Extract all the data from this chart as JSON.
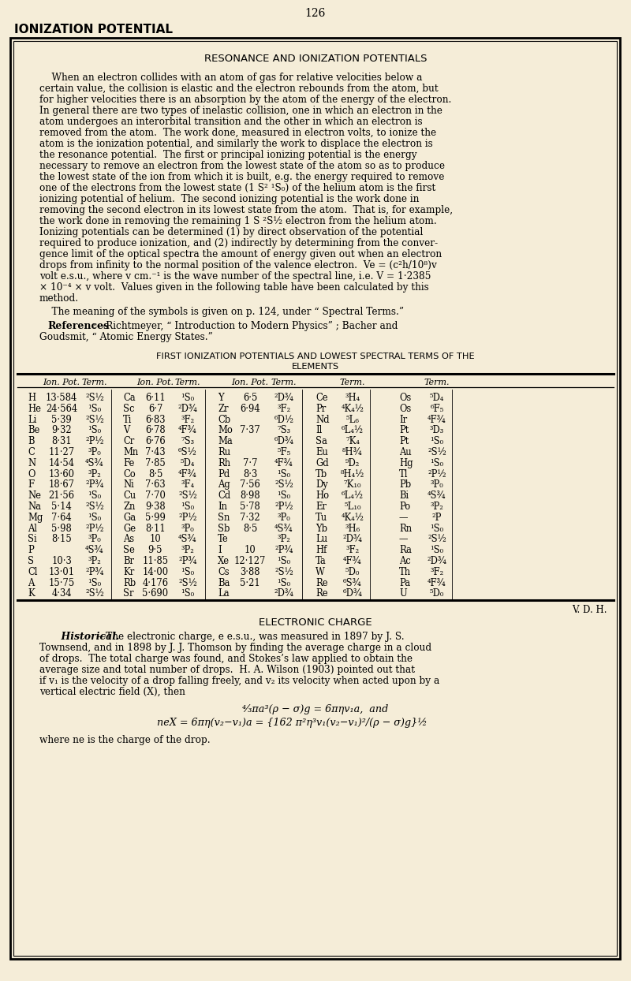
{
  "bg_color": "#f5edd8",
  "page_num": "126",
  "header": "IONIZATION POTENTIAL",
  "box_title": "RESONANCE AND IONIZATION POTENTIALS",
  "table_title_line1": "FIRST IONIZATION POTENTIALS AND LOWEST SPECTRAL TERMS OF THE",
  "table_title_line2": "ELEMENTS",
  "table_data": [
    [
      "H",
      "13·584",
      "²S½",
      "Ca",
      "6·11",
      "¹S₀",
      "Y",
      "6·5",
      "²D¾",
      "Ce",
      "³H₄",
      "Os",
      "⁵D₄"
    ],
    [
      "He",
      "24·564",
      "¹S₀",
      "Sc",
      "6·7",
      "²D¾",
      "Zr",
      "6·94",
      "³F₂",
      "Pr",
      "⁴K₄½",
      "Os",
      "⁶F₅"
    ],
    [
      "Li",
      "5·39",
      "²S½",
      "Ti",
      "6·83",
      "³F₂",
      "Cb",
      "",
      "⁶D½",
      "Nd",
      "⁵L₆",
      "Ir",
      "⁴F¾"
    ],
    [
      "Be",
      "9·32",
      "¹S₀",
      "V",
      "6·78",
      "⁴F¾",
      "Mo",
      "7·37",
      "⁷S₃",
      "Il",
      "⁶L₄½",
      "Pt",
      "³D₃"
    ],
    [
      "B",
      "8·31",
      "²P½",
      "Cr",
      "6·76",
      "⁷S₃",
      "Ma",
      "",
      "⁶D¾",
      "Sa",
      "⁷K₄",
      "Pt",
      "¹S₀"
    ],
    [
      "C",
      "11·27",
      "³P₀",
      "Mn",
      "7·43",
      "⁶S½",
      "Ru",
      "",
      "⁵F₅",
      "Eu",
      "⁸H¾",
      "Au",
      "²S½"
    ],
    [
      "N",
      "14·54",
      "⁴S¾",
      "Fe",
      "7·85",
      "⁵D₄",
      "Rh",
      "7·7",
      "⁴F¾",
      "Gd",
      "⁹D₂",
      "Hg",
      "¹S₀"
    ],
    [
      "O",
      "13·60",
      "³P₂",
      "Co",
      "8·5",
      "⁴F¾",
      "Pd",
      "8·3",
      "¹S₀",
      "Tb",
      "⁸H₄½",
      "Tl",
      "²P½"
    ],
    [
      "F",
      "18·67",
      "²P¾",
      "Ni",
      "7·63",
      "³F₄",
      "Ag",
      "7·56",
      "²S½",
      "Dy",
      "⁷K₁₀",
      "Pb",
      "³P₀"
    ],
    [
      "Ne",
      "21·56",
      "¹S₀",
      "Cu",
      "7·70",
      "²S½",
      "Cd",
      "8·98",
      "¹S₀",
      "Ho",
      "⁶L₄½",
      "Bi",
      "⁴S¾"
    ],
    [
      "Na",
      "5·14",
      "²S½",
      "Zn",
      "9·38",
      "¹S₀",
      "In",
      "5·78",
      "²P½",
      "Er",
      "⁵L₁₀",
      "Po",
      "³P₂"
    ],
    [
      "Mg",
      "7·64",
      "¹S₀",
      "Ga",
      "5·99",
      "²P½",
      "Sn",
      "7·32",
      "³P₀",
      "Tu",
      "⁴K₄½",
      "—",
      "²P"
    ],
    [
      "Al",
      "5·98",
      "²P½",
      "Ge",
      "8·11",
      "³P₀",
      "Sb",
      "8·5",
      "⁴S¾",
      "Yb",
      "³H₆",
      "Rn",
      "¹S₀"
    ],
    [
      "Si",
      "8·15",
      "³P₀",
      "As",
      "10",
      "⁴S¾",
      "Te",
      "",
      "³P₂",
      "Lu",
      "²D¾",
      "—",
      "²S½"
    ],
    [
      "P",
      "",
      "⁴S¾",
      "Se",
      "9·5",
      "³P₂",
      "I",
      "10",
      "²P¾",
      "Hf",
      "³F₂",
      "Ra",
      "¹S₀"
    ],
    [
      "S",
      "10·3",
      "³P₂",
      "Br",
      "11·85",
      "²P¾",
      "Xe",
      "12·127",
      "¹S₀",
      "Ta",
      "⁴F¾",
      "Ac",
      "²D¾"
    ],
    [
      "Cl",
      "13·01",
      "²P¾",
      "Kr",
      "14·00",
      "¹S₀",
      "Cs",
      "3·88",
      "²S½",
      "W",
      "⁵D₀",
      "Th",
      "³F₂"
    ],
    [
      "A",
      "15·75",
      "¹S₀",
      "Rb",
      "4·176",
      "²S½",
      "Ba",
      "5·21",
      "¹S₀",
      "Re",
      "⁶S¾",
      "Pa",
      "⁴F¾"
    ],
    [
      "K",
      "4·34",
      "²S½",
      "Sr",
      "5·690",
      "¹S₀",
      "La",
      "",
      "²D¾",
      "Re",
      "⁶D¾",
      "U",
      "⁵D₀"
    ]
  ],
  "vdh": "V. D. H.",
  "electronic_title": "ELECTRONIC CHARGE"
}
